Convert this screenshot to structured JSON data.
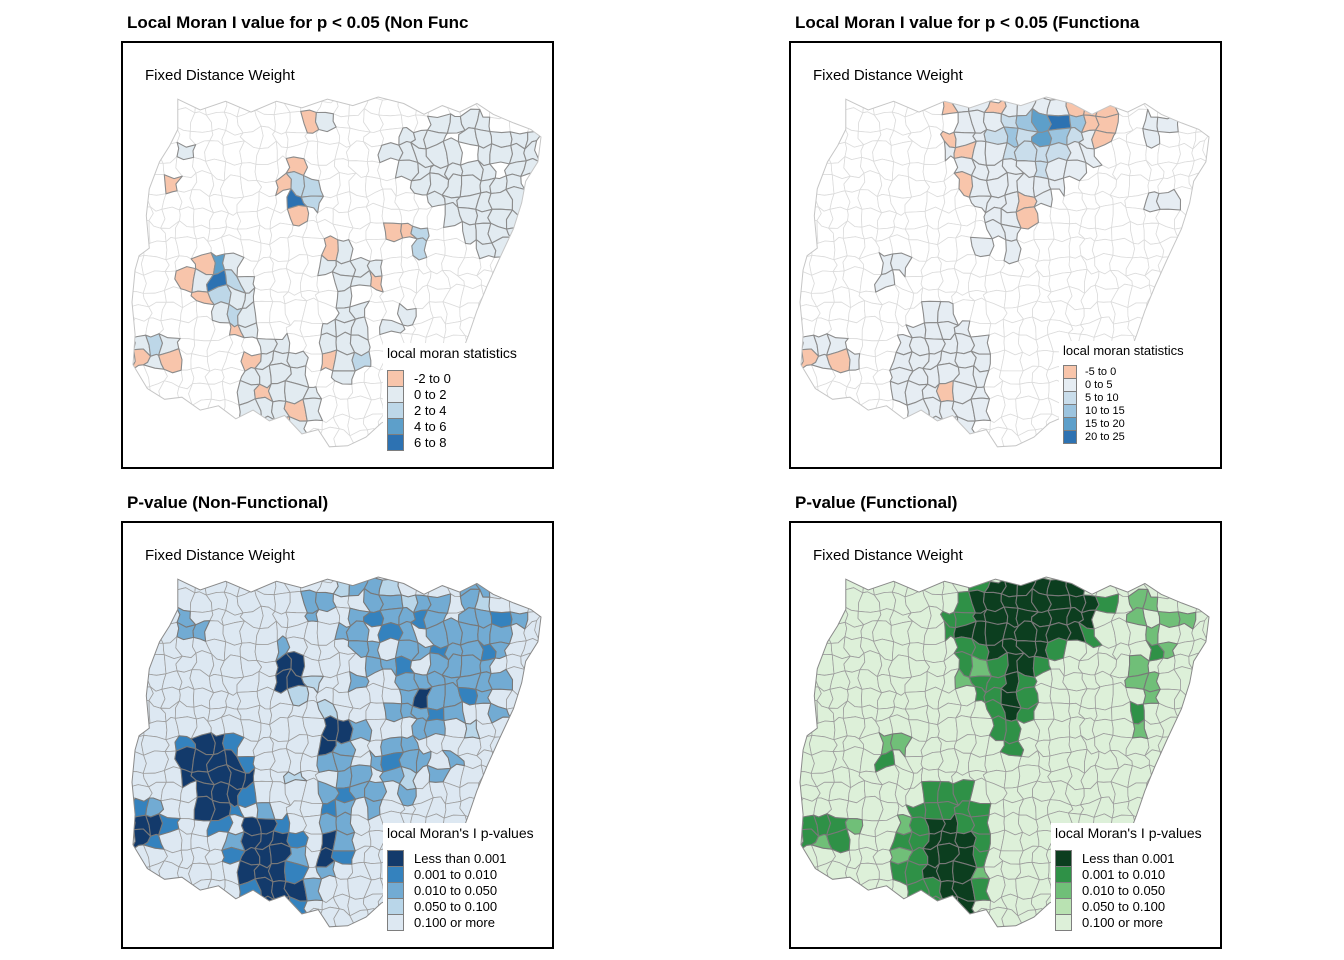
{
  "panels": [
    {
      "title": "Local Moran I value for p < 0.05 (Non Func",
      "weight_label": "Fixed Distance Weight",
      "legend": {
        "title": "local moran statistics",
        "items": [
          {
            "label": "-2 to 0",
            "color": "#F8C5AB"
          },
          {
            "label": "0 to 2",
            "color": "#E2EBF1"
          },
          {
            "label": "2 to 4",
            "color": "#BDD7E8"
          },
          {
            "label": "4 to 6",
            "color": "#5D9FCA"
          },
          {
            "label": "6 to 8",
            "color": "#2D72B2"
          }
        ]
      },
      "map": {
        "base_fill": "#FFFFFF",
        "base_stroke": "#DCDCDC",
        "cell_stroke": "#8C8C8C",
        "outline_stroke": "#C6C6C6",
        "grid": [
          "..........................",
          "...........01......1111...",
          ".................111.11111",
          "...1............11111.1111",
          "..........0......111111.11",
          "..0......022......1111111.",
          "..........42.......1111111",
          "..........0.........11111.",
          "................002..1111.",
          "............01....2...11..",
          "....031.....1111..........",
          "...01421.....110..........",
          "....0211.....1............",
          ".....121.....11..1........",
          "......01....111.1.........",
          "121.....11..111...........",
          "010....0111.012...........",
          ".......1111..1............",
          ".......10111..............",
          ".......11101..............",
          "........101...............",
          "........111..............."
        ]
      }
    },
    {
      "title": "Local Moran I value for p < 0.05 (Functiona",
      "weight_label": "Fixed Distance Weight",
      "legend": {
        "title": "local moran statistics",
        "items": [
          {
            "label": "-5 to 0",
            "color": "#F8C5AB"
          },
          {
            "label": "0 to 5",
            "color": "#E6EDF3"
          },
          {
            "label": "5 to 10",
            "color": "#C9DDEB"
          },
          {
            "label": "10 to 15",
            "color": "#9CC4DF"
          },
          {
            "label": "15 to 20",
            "color": "#5D9FCA"
          },
          {
            "label": "20 to 25",
            "color": "#2D72B2"
          }
        ]
      },
      "map": {
        "base_fill": "#FFFFFF",
        "base_stroke": "#DCDCDC",
        "cell_stroke": "#8C8C8C",
        "outline_stroke": "#C6C6C6",
        "grid": [
          ".........01101111000......",
          "..........1112345300..11..",
          ".........01123243210..1...",
          ".........1011222211.......",
          "..........11111211........",
          "..........0111111.........",
          "...........11101......11..",
          "............110...........",
          "............11............",
          "...........1.1............",
          ".....11...................",
          ".....1....................",
          "..........................",
          "........11................",
          ".......1111...............",
          "111...111111..............",
          "0101..111111..............",
          "......111111..............",
          "......111011..............",
          ".......11111..............",
          "........111...............",
          "........11................"
        ]
      }
    },
    {
      "title": "P-value (Non-Functional)",
      "weight_label": "Fixed Distance Weight",
      "legend": {
        "title": "local Moran's I p-values",
        "items": [
          {
            "label": "Less than 0.001",
            "color": "#133A6B"
          },
          {
            "label": "0.001 to 0.010",
            "color": "#3482BE"
          },
          {
            "label": "0.010 to 0.050",
            "color": "#72ABD3"
          },
          {
            "label": "0.050 to 0.100",
            "color": "#B9D6E9"
          },
          {
            "label": "0.100 or more",
            "color": "#DDE8F2"
          }
        ]
      },
      "map": {
        "base_fill": "#DDE8F2",
        "base_stroke": "#9E9E9E",
        "cell_stroke": "#787878",
        "outline_stroke": "#8A8A8A",
        "grid": [
          ".............3223....22...",
          "...........22..22322.23...",
          "...2.......2..212212.2212.",
          "...22........22.12.22222..",
          ".........2....22.2212212..",
          ".........00....221.2222...",
          ".........003..2..2222222..",
          "..........3......202212...",
          "............3...22212..2..",
          "............002...22.3....",
          "...1001.....02..22........",
          "...00001....22.2122.2.....",
          "...00000..3..22.23.2......",
          "....0001....2122.2........",
          "12..001.2...12.2..........",
          "001..1.001..22............",
          "01....20001.02............",
          "......10002.01............",
          ".......0001.2.............",
          ".......10002..............",
          "........001...............",
          "........102..............."
        ]
      }
    },
    {
      "title": "P-value (Functional)",
      "weight_label": "Fixed Distance Weight",
      "legend": {
        "title": "local Moran's I p-values",
        "items": [
          {
            "label": "Less than 0.001",
            "color": "#0C3E1F"
          },
          {
            "label": "0.001 to 0.010",
            "color": "#2F9147"
          },
          {
            "label": "0.010 to 0.050",
            "color": "#70BF78"
          },
          {
            "label": "0.050 to 0.100",
            "color": "#B9E2B2"
          },
          {
            "label": "0.100 or more",
            "color": "#DDF0D9"
          }
        ]
      },
      "map": {
        "base_fill": "#DDF0D9",
        "base_stroke": "#9E9E9E",
        "cell_stroke": "#787878",
        "outline_stroke": "#8A8A8A",
        "grid": [
          "...........1000000........",
          "..........1000000001.22...",
          ".........1100000000..2.22.",
          ".........1000000001...2...",
          "..........1100001.....12..",
          "..........121001.....2....",
          "..........21101......22...",
          "...........1101.......2...",
          "............101......1....",
          "............11.......2....",
          ".....22......1............",
          ".....1....................",
          "..........................",
          "........111...............",
          ".......11111..............",
          "1112..210011..............",
          "121...110001..............",
          "......210001..............",
          "......110002..............",
          ".......11001..............",
          "........100...............",
          "........201..............."
        ]
      }
    }
  ]
}
